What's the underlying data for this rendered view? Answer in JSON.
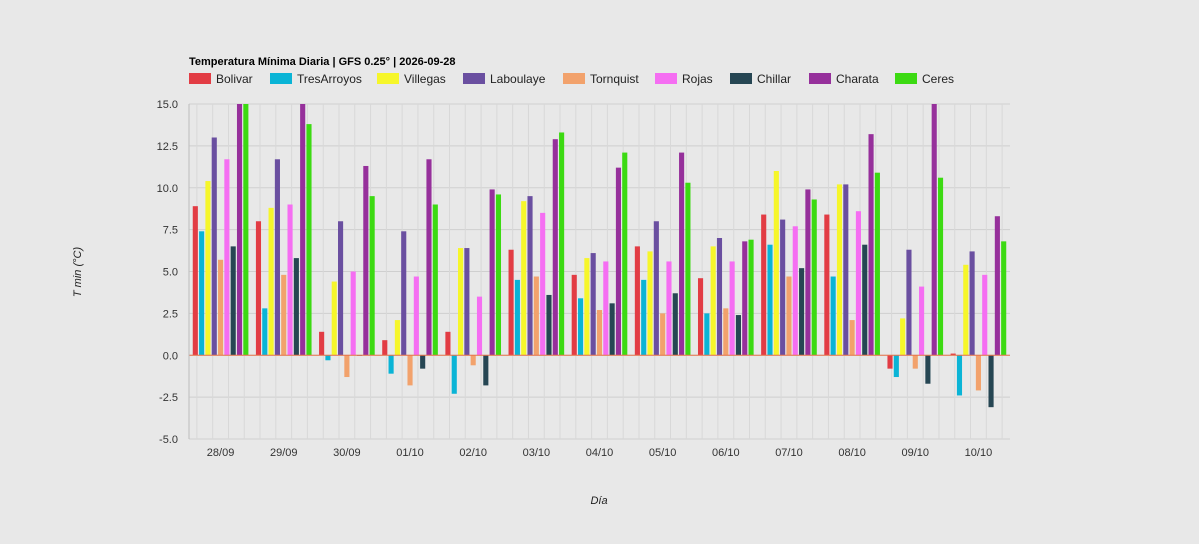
{
  "chart_data": {
    "type": "bar",
    "title": "Temperatura Mínima Diaria | GFS 0.25° | 2026-09-28",
    "xlabel": "Día",
    "ylabel": "T min (°C)",
    "ylim": [
      -5.0,
      15.0
    ],
    "yticks": [
      "15.0",
      "12.5",
      "10.0",
      "7.5",
      "5.0",
      "2.5",
      "0.0",
      "-2.5",
      "-5.0"
    ],
    "ytick_values": [
      15.0,
      12.5,
      10.0,
      7.5,
      5.0,
      2.5,
      0.0,
      -2.5,
      -5.0
    ],
    "grid": true,
    "legend_position": "top",
    "categories": [
      "28/09",
      "29/09",
      "30/09",
      "01/10",
      "02/10",
      "03/10",
      "04/10",
      "05/10",
      "06/10",
      "07/10",
      "08/10",
      "09/10",
      "10/10"
    ],
    "series": [
      {
        "name": "Bolivar",
        "color": "#e23c44",
        "values": [
          8.9,
          8.0,
          1.4,
          0.9,
          1.4,
          6.3,
          4.8,
          6.5,
          4.6,
          8.4,
          8.4,
          -0.8,
          0.1
        ]
      },
      {
        "name": "TresArroyos",
        "color": "#0ab4d6",
        "values": [
          7.4,
          2.8,
          -0.3,
          -1.1,
          -2.3,
          4.5,
          3.4,
          4.5,
          2.5,
          6.6,
          4.7,
          -1.3,
          -2.4
        ]
      },
      {
        "name": "Villegas",
        "color": "#f6f62a",
        "values": [
          10.4,
          8.8,
          4.4,
          2.1,
          6.4,
          9.2,
          5.8,
          6.2,
          6.5,
          11.0,
          10.2,
          2.2,
          5.4
        ]
      },
      {
        "name": "Laboulaye",
        "color": "#6a4fa0",
        "values": [
          13.0,
          11.7,
          8.0,
          7.4,
          6.4,
          9.5,
          6.1,
          8.0,
          7.0,
          8.1,
          10.2,
          6.3,
          6.2
        ]
      },
      {
        "name": "Tornquist",
        "color": "#f2a26c",
        "values": [
          5.7,
          4.8,
          -1.3,
          -1.8,
          -0.6,
          4.7,
          2.7,
          2.5,
          2.8,
          4.7,
          2.1,
          -0.8,
          -2.1
        ]
      },
      {
        "name": "Rojas",
        "color": "#f56ef2",
        "values": [
          11.7,
          9.0,
          5.0,
          4.7,
          3.5,
          8.5,
          5.6,
          5.6,
          5.6,
          7.7,
          8.6,
          4.1,
          4.8
        ]
      },
      {
        "name": "Chillar",
        "color": "#264653",
        "values": [
          6.5,
          5.8,
          0.0,
          -0.8,
          -1.8,
          3.6,
          3.1,
          3.7,
          2.4,
          5.2,
          6.6,
          -1.7,
          -3.1
        ]
      },
      {
        "name": "Charata",
        "color": "#96309b",
        "values": [
          15.0,
          15.0,
          11.3,
          11.7,
          9.9,
          12.9,
          11.2,
          12.1,
          6.8,
          9.9,
          13.2,
          15.0,
          8.3
        ]
      },
      {
        "name": "Ceres",
        "color": "#3cda12",
        "values": [
          15.0,
          13.8,
          9.5,
          9.0,
          9.6,
          13.3,
          12.1,
          10.3,
          6.9,
          9.3,
          10.9,
          10.6,
          6.8
        ]
      }
    ]
  }
}
